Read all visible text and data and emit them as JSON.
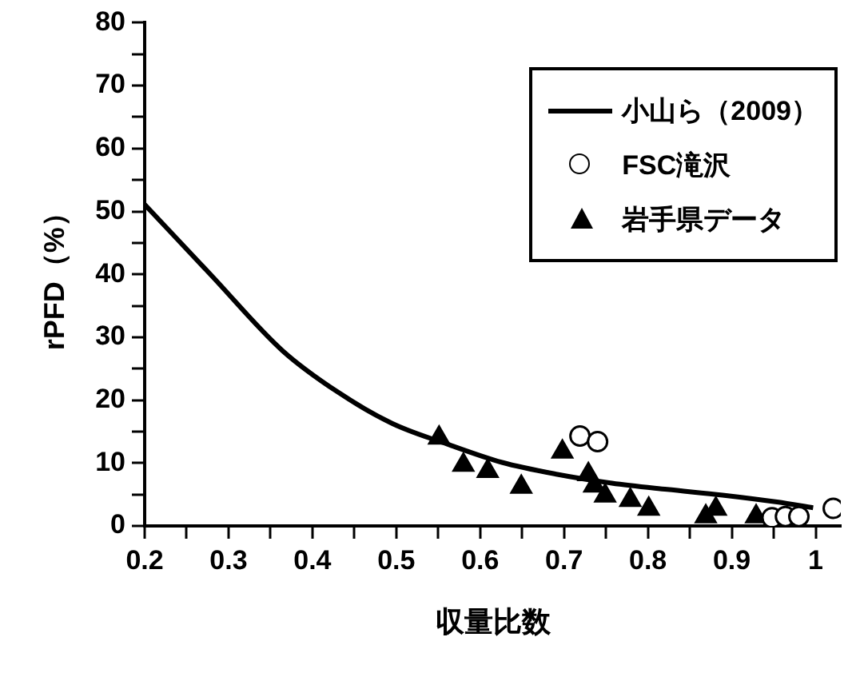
{
  "chart_data": {
    "type": "scatter",
    "xlabel": "収量比数",
    "ylabel": "rPFD（%）",
    "xlim": [
      0.2,
      1.03
    ],
    "ylim": [
      0,
      80
    ],
    "xticks": [
      0.2,
      {
        "value": 0.25,
        "label": null
      },
      0.3,
      {
        "value": 0.35,
        "label": null
      },
      0.4,
      {
        "value": 0.45,
        "label": null
      },
      0.5,
      {
        "value": 0.55,
        "label": null
      },
      0.6,
      {
        "value": 0.65,
        "label": null
      },
      0.7,
      {
        "value": 0.75,
        "label": null
      },
      0.8,
      {
        "value": 0.85,
        "label": null
      },
      0.9,
      {
        "value": 0.95,
        "label": null
      },
      1
    ],
    "yticks": [
      0,
      {
        "value": 5,
        "label": null
      },
      10,
      {
        "value": 15,
        "label": null
      },
      20,
      {
        "value": 25,
        "label": null
      },
      30,
      {
        "value": 35,
        "label": null
      },
      40,
      {
        "value": 45,
        "label": null
      },
      50,
      {
        "value": 55,
        "label": null
      },
      60,
      {
        "value": 65,
        "label": null
      },
      70,
      {
        "value": 75,
        "label": null
      },
      80
    ],
    "grid": false,
    "legend": "top right",
    "series": [
      {
        "name": "小山ら（2009）",
        "type": "line",
        "marker": "none",
        "line_style": "solid",
        "color": "#000000",
        "x": [
          0.2,
          0.279,
          0.364,
          0.43,
          0.495,
          0.561,
          0.626,
          0.692,
          0.757,
          0.823,
          0.889,
          0.954,
          0.997
        ],
        "values": [
          51.1,
          39.9,
          27.9,
          21.3,
          16.3,
          13.0,
          10.1,
          8.2,
          6.8,
          5.8,
          4.9,
          3.8,
          2.9
        ]
      },
      {
        "name": "FSC滝沢",
        "type": "scatter",
        "marker": "circle",
        "color": "#000000",
        "x": [
          0.719,
          0.74,
          0.948,
          0.964,
          0.98,
          1.021
        ],
        "values": [
          14.3,
          13.4,
          1.3,
          1.5,
          1.5,
          2.8
        ]
      },
      {
        "name": "岩手県データ",
        "type": "scatter",
        "marker": "triangle",
        "color": "#000000",
        "x": [
          0.551,
          0.58,
          0.609,
          0.649,
          0.698,
          0.729,
          0.736,
          0.749,
          0.779,
          0.801,
          0.869,
          0.881,
          0.929
        ],
        "values": [
          14.0,
          9.7,
          8.7,
          6.2,
          11.8,
          8.2,
          6.4,
          4.8,
          4.1,
          2.7,
          1.5,
          2.7,
          1.5
        ]
      }
    ]
  }
}
